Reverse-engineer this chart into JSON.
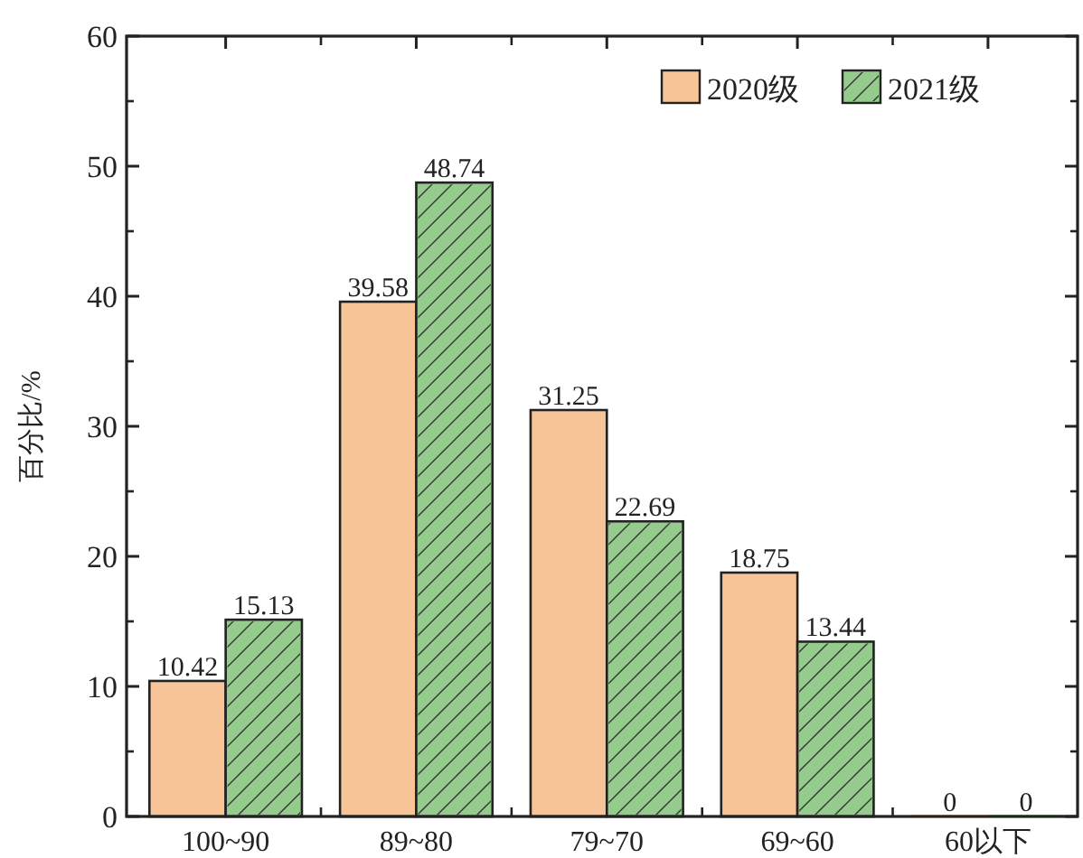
{
  "chart_data": {
    "type": "bar",
    "ylabel": "百分比/%",
    "categories": [
      "100~90",
      "89~80",
      "79~70",
      "69~60",
      "60以下"
    ],
    "series": [
      {
        "name": "2020级",
        "color": "#f6c497",
        "values": [
          10.42,
          39.58,
          31.25,
          18.75,
          0
        ]
      },
      {
        "name": "2021级",
        "color": "#96cb8e",
        "values": [
          15.13,
          48.74,
          22.69,
          13.44,
          0
        ]
      }
    ],
    "ylim": [
      0,
      60
    ],
    "yticks": [
      0,
      10,
      20,
      30,
      40,
      50,
      60
    ],
    "data_labels": true,
    "legend": "top right"
  }
}
